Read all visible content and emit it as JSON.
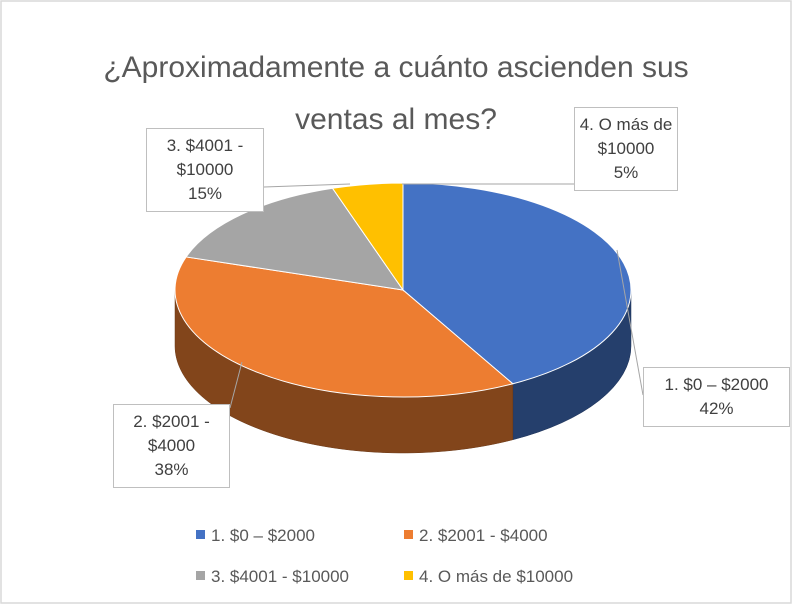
{
  "chart_data": {
    "type": "pie",
    "title": "¿Aproximadamente a cuánto ascienden sus ventas al mes?",
    "categories": [
      "1. $0 – $2000",
      "2. $2001 - $4000",
      "3. $4001 - $10000",
      "4. O más de $10000"
    ],
    "values": [
      42,
      38,
      15,
      5
    ],
    "value_labels": [
      "42%",
      "38%",
      "15%",
      "5%"
    ],
    "colors": [
      "#4472c4",
      "#ed7d31",
      "#a5a5a5",
      "#ffc000"
    ],
    "legend": "bottom"
  }
}
